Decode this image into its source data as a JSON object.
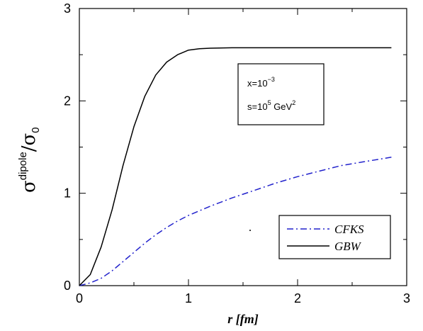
{
  "chart_data": {
    "type": "line",
    "xlabel": "r [fm]",
    "ylabel": {
      "sigma": "σ",
      "superscript": "dipole",
      "slash": "/",
      "sigma0": "σ",
      "subscript": "0"
    },
    "xlim": [
      0,
      3
    ],
    "ylim": [
      0,
      3
    ],
    "x_ticks": [
      0,
      1,
      2,
      3
    ],
    "y_ticks": [
      0,
      1,
      2,
      3
    ],
    "grid": false,
    "legend_position": "bottom-right",
    "annotation": {
      "line1": {
        "base": "x=10",
        "sup": "−3"
      },
      "line2": {
        "base": "s=10",
        "sup": "5",
        "mid": " GeV",
        "sup2": "2"
      }
    },
    "series": [
      {
        "name": "CFKS",
        "color": "#2222cc",
        "style": "dash-dot",
        "x": [
          0,
          0.1,
          0.2,
          0.3,
          0.4,
          0.5,
          0.6,
          0.7,
          0.8,
          0.9,
          1.0,
          1.2,
          1.4,
          1.6,
          1.8,
          2.0,
          2.2,
          2.4,
          2.6,
          2.86
        ],
        "y": [
          0,
          0.03,
          0.08,
          0.16,
          0.26,
          0.36,
          0.46,
          0.55,
          0.63,
          0.7,
          0.76,
          0.86,
          0.95,
          1.03,
          1.11,
          1.18,
          1.24,
          1.3,
          1.34,
          1.39
        ]
      },
      {
        "name": "GBW",
        "color": "#000000",
        "style": "solid",
        "x": [
          0,
          0.1,
          0.2,
          0.3,
          0.4,
          0.5,
          0.6,
          0.7,
          0.8,
          0.9,
          1.0,
          1.1,
          1.2,
          1.4,
          1.6,
          2.0,
          2.5,
          2.86
        ],
        "y": [
          0,
          0.12,
          0.42,
          0.82,
          1.3,
          1.72,
          2.05,
          2.28,
          2.42,
          2.5,
          2.55,
          2.565,
          2.57,
          2.575,
          2.575,
          2.575,
          2.575,
          2.575
        ]
      }
    ]
  }
}
